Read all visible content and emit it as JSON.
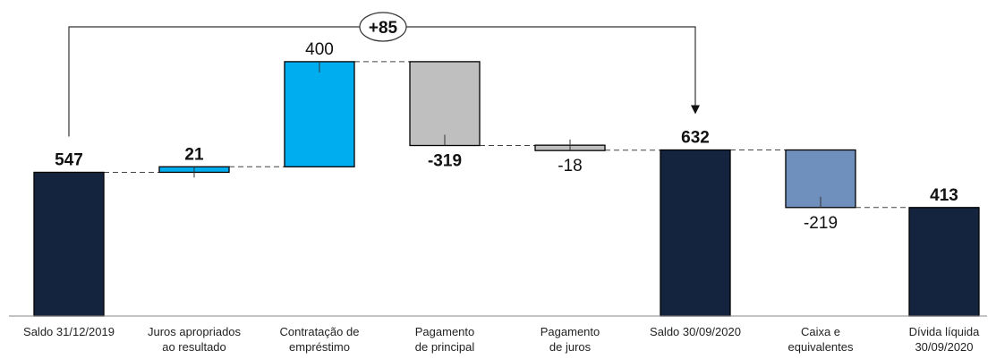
{
  "chart_data": {
    "type": "waterfall",
    "categories": [
      [
        "Saldo 31/12/2019"
      ],
      [
        "Juros apropriados",
        "ao resultado"
      ],
      [
        "Contratação de",
        "empréstimo"
      ],
      [
        "Pagamento",
        "de principal"
      ],
      [
        "Pagamento",
        "de juros"
      ],
      [
        "Saldo 30/09/2020"
      ],
      [
        "Caixa e",
        "equivalentes"
      ],
      [
        "Dívida líquida",
        "30/09/2020"
      ]
    ],
    "steps": [
      {
        "kind": "total",
        "value": 547,
        "label": "547",
        "bold": true,
        "color": "#14243f"
      },
      {
        "kind": "delta",
        "value": 21,
        "label": "21",
        "bold": true,
        "color": "#00aeef"
      },
      {
        "kind": "delta",
        "value": 400,
        "label": "400",
        "bold": false,
        "color": "#00aeef"
      },
      {
        "kind": "delta",
        "value": -319,
        "label": "-319",
        "bold": true,
        "color": "#bfbfbf"
      },
      {
        "kind": "delta",
        "value": -18,
        "label": "-18",
        "bold": false,
        "color": "#bfbfbf"
      },
      {
        "kind": "total",
        "value": 632,
        "label": "632",
        "bold": true,
        "color": "#14243f"
      },
      {
        "kind": "delta",
        "value": -219,
        "label": "-219",
        "bold": false,
        "color": "#6f8fbc"
      },
      {
        "kind": "total",
        "value": 413,
        "label": "413",
        "bold": true,
        "color": "#14243f"
      }
    ],
    "annotation": {
      "from": 0,
      "to": 5,
      "label": "+85"
    },
    "connectors": "dashed",
    "grid": false,
    "legend": "none"
  }
}
